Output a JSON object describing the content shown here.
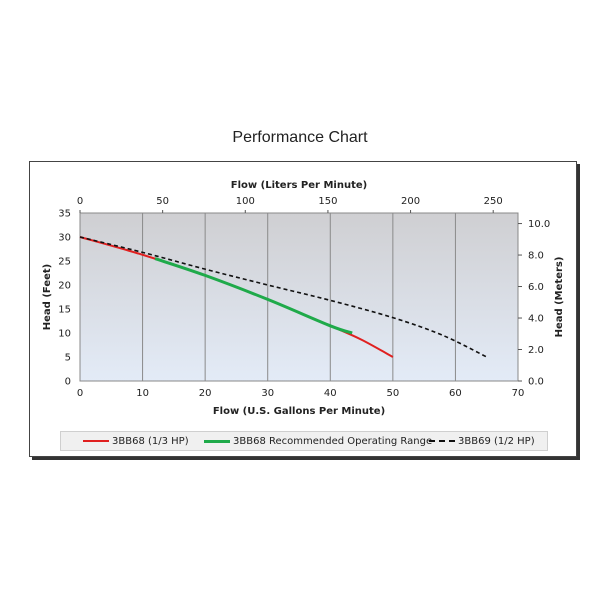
{
  "title": "Performance Chart",
  "chart_data": {
    "type": "line",
    "title": "Performance Chart",
    "xlabel": "Flow (U.S. Gallons Per Minute)",
    "ylabel": "Head (Feet)",
    "x2label": "Flow (Liters Per Minute)",
    "y2label": "Head (Meters)",
    "xlim": [
      0,
      70
    ],
    "ylim": [
      0,
      35
    ],
    "x2lim": [
      0,
      265
    ],
    "y2lim": [
      0,
      10.67
    ],
    "xticks": [
      "0",
      "10",
      "20",
      "30",
      "40",
      "50",
      "60",
      "70"
    ],
    "yticks": [
      "0",
      "5",
      "10",
      "15",
      "20",
      "25",
      "30",
      "35"
    ],
    "x2ticks": [
      "0",
      "50",
      "100",
      "150",
      "200",
      "250"
    ],
    "y2ticks": [
      "0.0",
      "2.0",
      "4.0",
      "6.0",
      "8.0",
      "10.0"
    ],
    "grid": true,
    "legend_position": "bottom",
    "series": [
      {
        "name": "3BB68 (1/3 HP)",
        "color": "#e02020",
        "dash": "solid",
        "x": [
          0,
          10,
          20,
          30,
          40,
          45,
          50
        ],
        "y": [
          30,
          26.3,
          22,
          17,
          11.5,
          8.6,
          5
        ]
      },
      {
        "name": "3BB68 Recommended Operating Range",
        "color": "#1faa4a",
        "dash": "solid",
        "x": [
          12,
          20,
          30,
          40,
          43.5
        ],
        "y": [
          25.5,
          22,
          17,
          11.5,
          10
        ]
      },
      {
        "name": "3BB69 (1/2 HP)",
        "color": "#111111",
        "dash": "dashed",
        "x": [
          0,
          10,
          20,
          30,
          40,
          50,
          58,
          65
        ],
        "y": [
          30,
          26.8,
          23.3,
          20,
          16.8,
          13.2,
          9.5,
          5
        ]
      }
    ]
  }
}
